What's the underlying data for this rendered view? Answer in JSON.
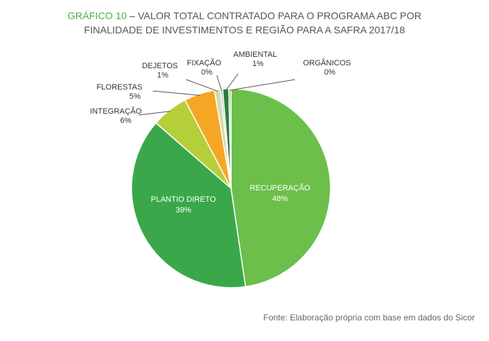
{
  "title": {
    "lead": "GRÁFICO 10",
    "line1_rest": " – VALOR TOTAL CONTRATADO PARA O PROGRAMA ABC POR",
    "line2": "FINALIDADE DE INVESTIMENTOS E REGIÃO PARA A SAFRA 2017/18"
  },
  "source": "Fonte: Elaboração própria com base em dados do Sicor",
  "chart_data": {
    "type": "pie",
    "start": "12 o'clock",
    "direction": "clockwise",
    "slices": [
      {
        "label": "RECUPERAÇÃO",
        "value": 48,
        "pct_label": "48%",
        "color": "#6bbf4a",
        "label_inside": true
      },
      {
        "label": "PLANTIO DIRETO",
        "value": 39,
        "pct_label": "39%",
        "color": "#3aa84a",
        "label_inside": true
      },
      {
        "label": "INTEGRAÇÃO",
        "value": 6,
        "pct_label": "6%",
        "color": "#b5cf3a",
        "label_inside": false
      },
      {
        "label": "FLORESTAS",
        "value": 5,
        "pct_label": "5%",
        "color": "#f5a623",
        "label_inside": false
      },
      {
        "label": "DEJETOS",
        "value": 1,
        "pct_label": "1%",
        "color": "#d9d9b0",
        "label_inside": false
      },
      {
        "label": "FIXAÇÃO",
        "value": 0,
        "pct_label": "0%",
        "color": "#9bbfb0",
        "label_inside": false
      },
      {
        "label": "AMBIENTAL",
        "value": 1,
        "pct_label": "1%",
        "color": "#2e7d3c",
        "label_inside": false
      },
      {
        "label": "ORGÂNICOS",
        "value": 0,
        "pct_label": "0%",
        "color": "#8fcf7a",
        "label_inside": false
      }
    ]
  }
}
